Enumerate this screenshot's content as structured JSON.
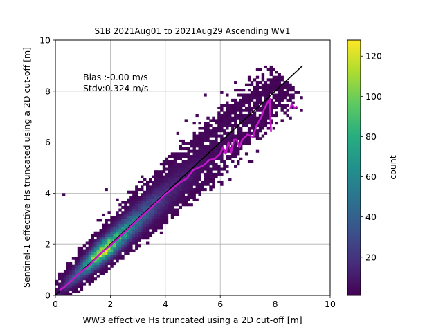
{
  "chart_data": {
    "type": "heatmap",
    "title": "S1B 2021Aug01 to 2021Aug29 Ascending WV1",
    "xlabel": "WW3 effective Hs truncated using a 2D cut-off [m]",
    "ylabel": "Sentinel-1 effective Hs truncated using a 2D cut-off [m]",
    "xlim": [
      0,
      10
    ],
    "ylim": [
      0,
      10
    ],
    "xticks": [
      "0",
      "2",
      "4",
      "6",
      "8",
      "10"
    ],
    "yticks": [
      "0",
      "2",
      "4",
      "6",
      "8",
      "10"
    ],
    "grid": true,
    "annotations": [
      "Bias :-0.00 m/s",
      "Stdv:0.324 m/s"
    ],
    "colorbar": {
      "label": "count",
      "range": [
        1,
        128
      ],
      "ticks": [
        "20",
        "40",
        "60",
        "80",
        "100",
        "120"
      ],
      "colormap": "viridis"
    },
    "density_ridge": {
      "description_x": [
        0.2,
        0.8,
        1.4,
        1.8,
        2.2,
        3.0,
        4.0,
        5.0,
        6.0,
        7.0,
        8.0
      ],
      "peak_counts": [
        10,
        40,
        100,
        128,
        90,
        45,
        18,
        8,
        3,
        2,
        1
      ]
    },
    "one_to_one_line": {
      "x": [
        0,
        9
      ],
      "y": [
        0,
        9
      ],
      "color": "#000000"
    },
    "mean_curve": {
      "color": "#c218c8",
      "x": [
        0.15,
        0.3,
        0.5,
        0.8,
        1.2,
        1.6,
        2.0,
        2.5,
        3.0,
        3.5,
        4.0,
        4.5,
        4.8,
        5.0,
        5.2,
        5.4,
        5.6,
        5.8,
        6.0,
        6.1,
        6.2,
        6.3,
        6.4,
        6.5,
        6.6,
        6.7,
        6.8,
        7.0,
        7.2,
        7.3,
        7.5,
        7.6,
        7.7,
        7.8,
        7.85,
        8.55,
        8.6,
        8.7,
        8.8
      ],
      "y": [
        0.2,
        0.3,
        0.5,
        0.8,
        1.15,
        1.6,
        1.95,
        2.45,
        2.95,
        3.45,
        3.95,
        4.4,
        4.6,
        4.9,
        5.0,
        5.1,
        5.3,
        5.35,
        5.55,
        5.8,
        5.55,
        6.0,
        5.6,
        6.1,
        6.1,
        5.8,
        6.1,
        6.3,
        6.2,
        6.6,
        7.0,
        7.3,
        7.5,
        7.7,
        6.4,
        7.3,
        7.5,
        7.35,
        7.4
      ]
    }
  }
}
